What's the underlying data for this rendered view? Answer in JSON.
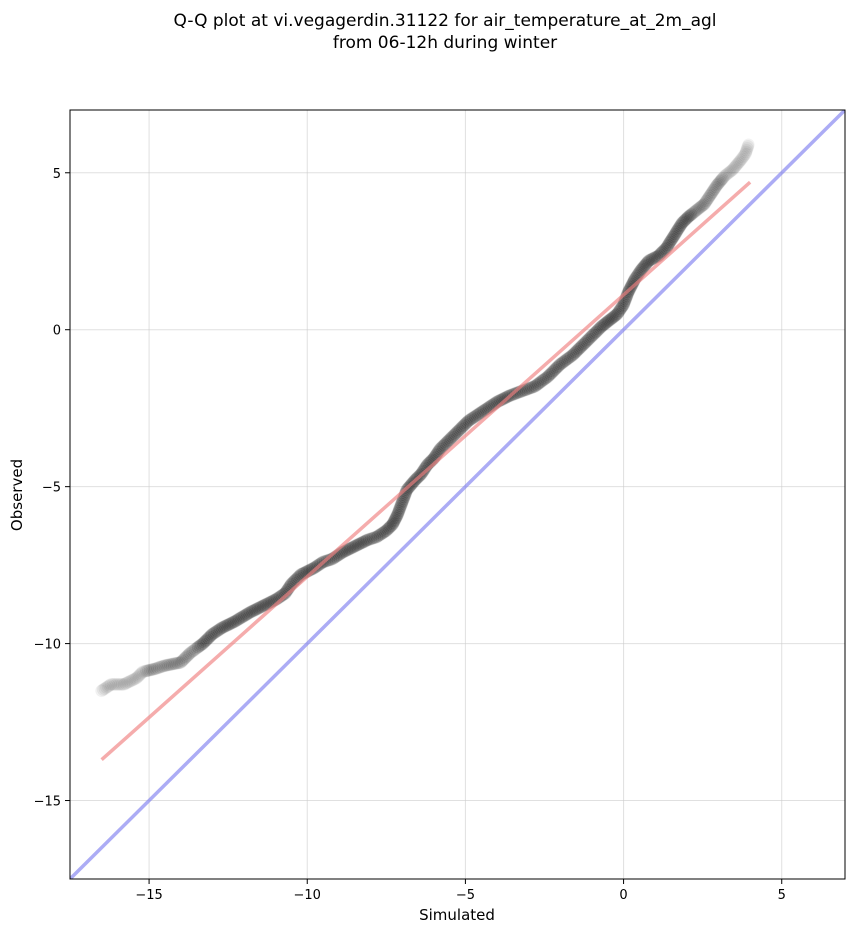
{
  "chart_data": {
    "type": "scatter",
    "title_lines": [
      "Q-Q plot at vi.vegagerdin.31122 for air_temperature_at_2m_agl",
      "from 06-12h during winter"
    ],
    "xlabel": "Simulated",
    "ylabel": "Observed",
    "xlim": [
      -17.5,
      7.0
    ],
    "ylim": [
      -17.5,
      7.0
    ],
    "xticks": [
      -15,
      -10,
      -5,
      0,
      5
    ],
    "yticks": [
      5,
      0,
      -5,
      -10,
      -15
    ],
    "xtick_labels": [
      "−15",
      "−10",
      "−5",
      "0",
      "5"
    ],
    "ytick_labels": [
      "5",
      "0",
      "−5",
      "−10",
      "−15"
    ],
    "grid": true,
    "colors": {
      "points": "#000000",
      "fit_line": "#f08080",
      "identity_line": "#8080f0"
    },
    "quantile_curve": [
      [
        -16.5,
        -11.5
      ],
      [
        -16.2,
        -11.3
      ],
      [
        -15.8,
        -11.3
      ],
      [
        -15.4,
        -11.1
      ],
      [
        -15.2,
        -10.9
      ],
      [
        -14.8,
        -10.8
      ],
      [
        -14.5,
        -10.7
      ],
      [
        -14.0,
        -10.6
      ],
      [
        -13.7,
        -10.3
      ],
      [
        -13.3,
        -10.0
      ],
      [
        -13.0,
        -9.7
      ],
      [
        -12.7,
        -9.5
      ],
      [
        -12.3,
        -9.3
      ],
      [
        -11.8,
        -9.0
      ],
      [
        -11.4,
        -8.8
      ],
      [
        -11.0,
        -8.6
      ],
      [
        -10.7,
        -8.4
      ],
      [
        -10.5,
        -8.1
      ],
      [
        -10.2,
        -7.8
      ],
      [
        -9.8,
        -7.6
      ],
      [
        -9.5,
        -7.4
      ],
      [
        -9.2,
        -7.3
      ],
      [
        -8.9,
        -7.1
      ],
      [
        -8.5,
        -6.9
      ],
      [
        -8.1,
        -6.7
      ],
      [
        -7.8,
        -6.6
      ],
      [
        -7.5,
        -6.4
      ],
      [
        -7.3,
        -6.2
      ],
      [
        -7.15,
        -5.9
      ],
      [
        -7.0,
        -5.5
      ],
      [
        -6.85,
        -5.1
      ],
      [
        -6.6,
        -4.8
      ],
      [
        -6.4,
        -4.6
      ],
      [
        -6.2,
        -4.3
      ],
      [
        -6.0,
        -4.1
      ],
      [
        -5.8,
        -3.8
      ],
      [
        -5.5,
        -3.5
      ],
      [
        -5.2,
        -3.2
      ],
      [
        -4.9,
        -2.9
      ],
      [
        -4.6,
        -2.7
      ],
      [
        -4.3,
        -2.5
      ],
      [
        -4.0,
        -2.3
      ],
      [
        -3.6,
        -2.1
      ],
      [
        -3.2,
        -1.95
      ],
      [
        -2.8,
        -1.8
      ],
      [
        -2.4,
        -1.5
      ],
      [
        -2.0,
        -1.1
      ],
      [
        -1.6,
        -0.8
      ],
      [
        -1.3,
        -0.5
      ],
      [
        -1.0,
        -0.2
      ],
      [
        -0.7,
        0.1
      ],
      [
        -0.45,
        0.3
      ],
      [
        -0.2,
        0.5
      ],
      [
        0.0,
        0.8
      ],
      [
        0.15,
        1.2
      ],
      [
        0.35,
        1.6
      ],
      [
        0.55,
        1.9
      ],
      [
        0.8,
        2.2
      ],
      [
        1.1,
        2.35
      ],
      [
        1.35,
        2.6
      ],
      [
        1.6,
        3.0
      ],
      [
        1.85,
        3.4
      ],
      [
        2.05,
        3.6
      ],
      [
        2.3,
        3.8
      ],
      [
        2.55,
        4.0
      ],
      [
        2.75,
        4.3
      ],
      [
        2.95,
        4.6
      ],
      [
        3.2,
        4.9
      ],
      [
        3.45,
        5.1
      ],
      [
        3.7,
        5.4
      ],
      [
        3.85,
        5.6
      ],
      [
        3.95,
        5.9
      ]
    ],
    "fit_line": [
      [
        -16.5,
        -13.7
      ],
      [
        4.0,
        4.7
      ]
    ],
    "identity_line": [
      [
        -17.5,
        -17.5
      ],
      [
        7.0,
        7.0
      ]
    ]
  }
}
